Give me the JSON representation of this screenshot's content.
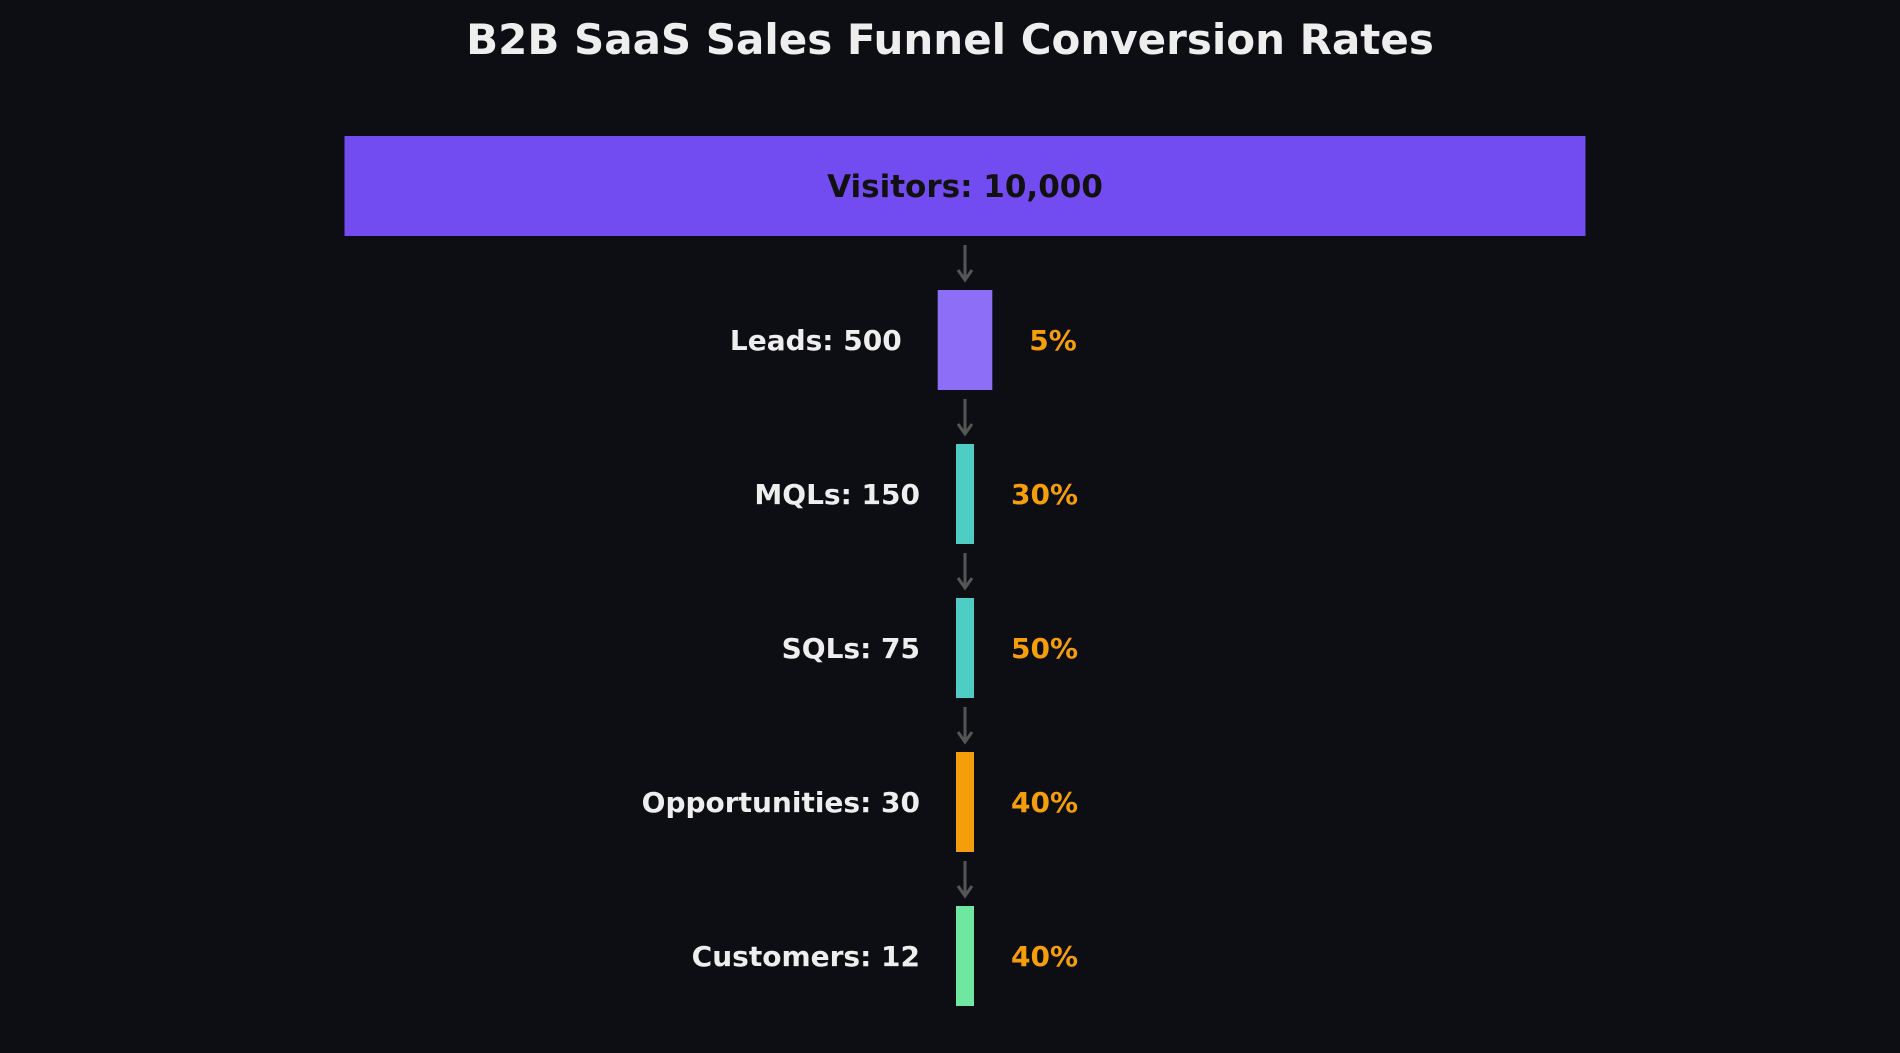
{
  "chart_data": {
    "type": "funnel",
    "title": "B2B SaaS Sales Funnel Conversion Rates",
    "stages": [
      {
        "label": "Visitors: 10,000",
        "name": "Visitors",
        "value": 10000,
        "color": "#724cf0",
        "conversion": null
      },
      {
        "label": "Leads: 500",
        "name": "Leads",
        "value": 500,
        "color": "#8d6ef7",
        "conversion": "5%"
      },
      {
        "label": "MQLs: 150",
        "name": "MQLs",
        "value": 150,
        "color": "#4ecdc4",
        "conversion": "30%"
      },
      {
        "label": "SQLs: 75",
        "name": "SQLs",
        "value": 75,
        "color": "#4ecdc4",
        "conversion": "50%"
      },
      {
        "label": "Opportunities: 30",
        "name": "Opportunities",
        "value": 30,
        "color": "#f59e0b",
        "conversion": "40%"
      },
      {
        "label": "Customers: 12",
        "name": "Customers",
        "value": 12,
        "color": "#6ee7a0",
        "conversion": "40%"
      }
    ],
    "conversion_color": "#f59e0b",
    "arrow_color": "#555555",
    "background": "#0d0e13"
  }
}
